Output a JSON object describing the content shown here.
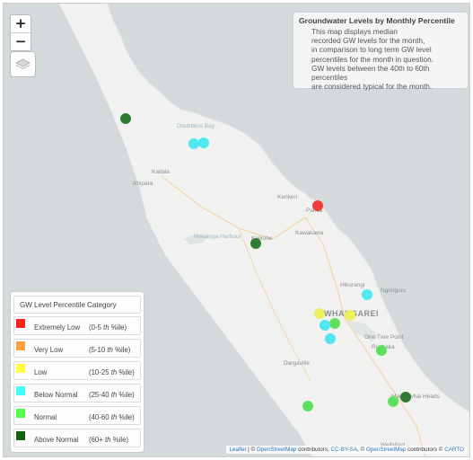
{
  "map": {
    "zoom_in": "+",
    "zoom_out": "−",
    "layers_icon": "layers-icon"
  },
  "places": [
    {
      "name": "Doubtless Bay",
      "kind": "water"
    },
    {
      "name": "Kaitaia",
      "kind": "town"
    },
    {
      "name": "Ahipara",
      "kind": "town"
    },
    {
      "name": "Kerikeri",
      "kind": "town"
    },
    {
      "name": "Paihia",
      "kind": "town"
    },
    {
      "name": "Kawakawa",
      "kind": "town"
    },
    {
      "name": "Hokianga Harbour",
      "kind": "water"
    },
    {
      "name": "Kaikohe",
      "kind": "town"
    },
    {
      "name": "Hikurangi",
      "kind": "town"
    },
    {
      "name": "Ngunguru",
      "kind": "town"
    },
    {
      "name": "WHANGAREI",
      "kind": "city"
    },
    {
      "name": "One Tree Point",
      "kind": "town"
    },
    {
      "name": "Ruakaka",
      "kind": "town"
    },
    {
      "name": "Dargaville",
      "kind": "town"
    },
    {
      "name": "Mangawhai Heads",
      "kind": "town"
    },
    {
      "name": "Wellsford",
      "kind": "town"
    }
  ],
  "info": {
    "title": "Groundwater Levels by Monthly Percentile",
    "lines": [
      "This map displays median",
      "recorded GW levels for the month,",
      "in comparison to long term GW level",
      "percentiles for the month in question.",
      "GW levels between the 40th to 60th percentiles",
      "are considered typical for the month."
    ]
  },
  "legend": {
    "title": "GW Level Percentile Category",
    "items": [
      {
        "label": "Extremely Low",
        "range_a": "(0-5",
        "range_b": "%ile)",
        "color": "#ff2020"
      },
      {
        "label": "Very Low",
        "range_a": "(5-10",
        "range_b": "%ile)",
        "color": "#ffa040"
      },
      {
        "label": "Low",
        "range_a": "(10-25",
        "range_b": "%ile)",
        "color": "#ffff40"
      },
      {
        "label": "Below Normal",
        "range_a": "(25-40",
        "range_b": "%ile)",
        "color": "#40ffff"
      },
      {
        "label": "Normal",
        "range_a": "(40-60",
        "range_b": "%ile)",
        "color": "#50ff50"
      },
      {
        "label": "Above Normal",
        "range_a": "(60+",
        "range_b": "%ile)",
        "color": "#106010"
      }
    ],
    "th": "th"
  },
  "markers": [
    {
      "category": "Above Normal",
      "color": "#2e7d32"
    },
    {
      "category": "Below Normal",
      "color": "#4fe8f2"
    },
    {
      "category": "Below Normal",
      "color": "#4fe8f2"
    },
    {
      "category": "Extremely Low",
      "color": "#f23c3c"
    },
    {
      "category": "Above Normal",
      "color": "#2e7d32"
    },
    {
      "category": "Below Normal",
      "color": "#4fe8f2"
    },
    {
      "category": "Low",
      "color": "#ecf05a"
    },
    {
      "category": "Normal",
      "color": "#5ee05e"
    },
    {
      "category": "Below Normal",
      "color": "#4fe8f2"
    },
    {
      "category": "Below Normal",
      "color": "#4fe8f2"
    },
    {
      "category": "Low",
      "color": "#ecf05a"
    },
    {
      "category": "Normal",
      "color": "#5ee05e"
    },
    {
      "category": "Above Normal",
      "color": "#2e7d32"
    },
    {
      "category": "Normal",
      "color": "#5ee05e"
    },
    {
      "category": "Normal",
      "color": "#5ee05e"
    }
  ],
  "attribution": {
    "leaflet": "Leaflet",
    "sep1": " | © ",
    "osm1": "OpenStreetMap",
    "t1": " contributors, ",
    "ccbysa": "CC-BY-SA",
    "sep2": ", © ",
    "osm2": "OpenStreetMap",
    "t2": " contributors © ",
    "carto": "CARTO"
  }
}
